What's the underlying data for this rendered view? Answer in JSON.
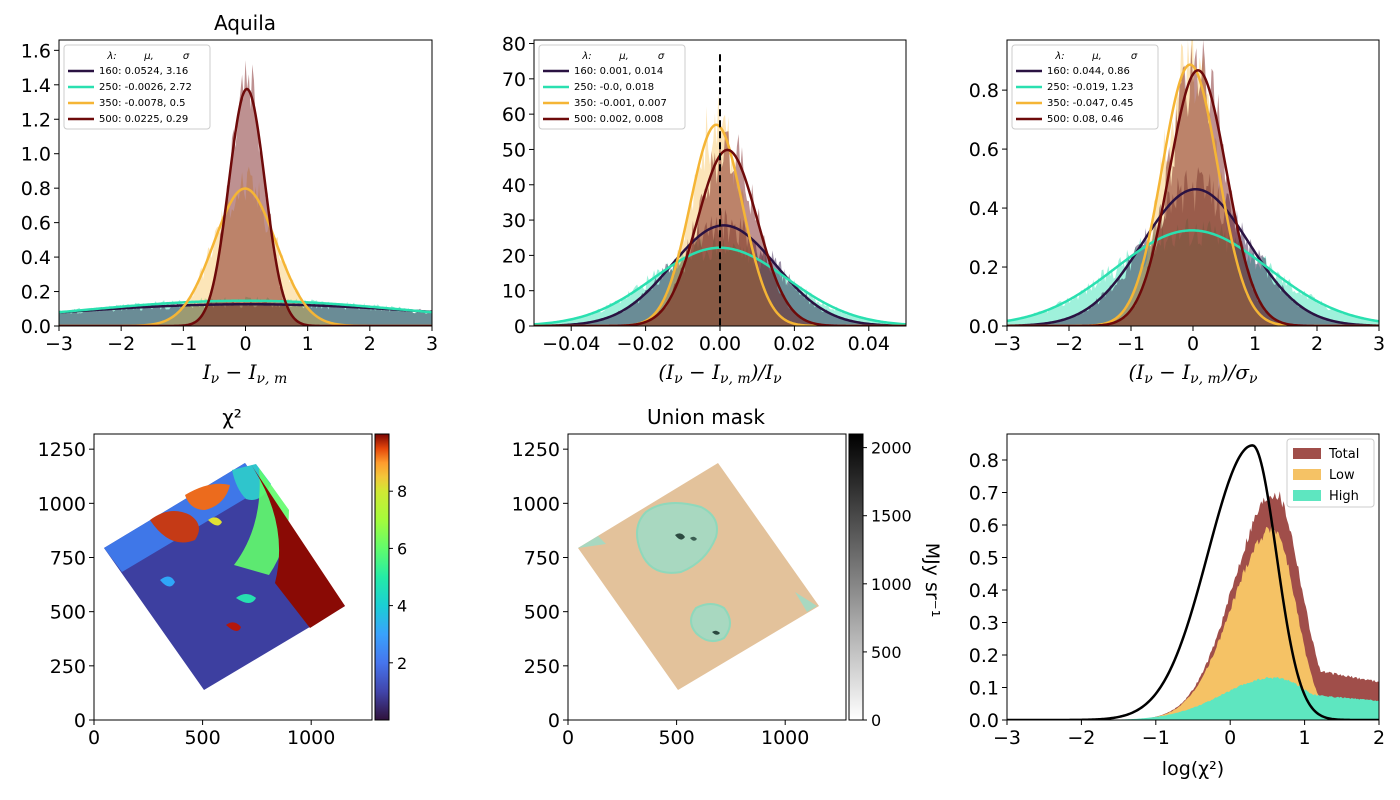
{
  "colors": {
    "c160": "#2a1242",
    "c250": "#2ae0b0",
    "c350": "#f5b535",
    "c500": "#6e0a0a",
    "total": "#a04e4a",
    "low": "#f5c265",
    "high": "#5ee6c0",
    "mask_fill": "#e3c29b",
    "mask_edge": "#8fd8bb"
  },
  "chart_data": [
    {
      "id": "panel1",
      "type": "histogram+line",
      "title": "Aquila",
      "xlabel": "I_ν − I_ν,m",
      "xlim": [
        -3,
        3
      ],
      "ylim": [
        0,
        1.66
      ],
      "xticks": [
        "−3",
        "−2",
        "−1",
        "0",
        "1",
        "2",
        "3"
      ],
      "yticks": [
        "0.0",
        "0.2",
        "0.4",
        "0.6",
        "0.8",
        "1.0",
        "1.2",
        "1.4",
        "1.6"
      ],
      "legend_header": [
        "λ:",
        "μ,",
        "σ"
      ],
      "series": [
        {
          "name": "160: 0.0524,  3.16",
          "mu": 0.0524,
          "sigma": 3.16
        },
        {
          "name": "250: -0.0026,  2.72",
          "mu": -0.0026,
          "sigma": 2.72
        },
        {
          "name": "350: -0.0078,  0.5",
          "mu": -0.0078,
          "sigma": 0.5
        },
        {
          "name": "500: 0.0225,  0.29",
          "mu": 0.0225,
          "sigma": 0.29
        }
      ]
    },
    {
      "id": "panel2",
      "type": "histogram+line",
      "title": "",
      "xlabel": "(I_ν − I_ν,m)/I_ν",
      "xlim": [
        -0.05,
        0.05
      ],
      "ylim": [
        0,
        81
      ],
      "xticks": [
        "−0.04",
        "−0.02",
        "0.00",
        "0.02",
        "0.04"
      ],
      "yticks": [
        "0",
        "10",
        "20",
        "30",
        "40",
        "50",
        "60",
        "70",
        "80"
      ],
      "vline_x": 0,
      "legend_header": [
        "λ:",
        "μ,",
        "σ"
      ],
      "series": [
        {
          "name": "160: 0.001,  0.014",
          "mu": 0.001,
          "sigma": 0.014
        },
        {
          "name": "250: -0.0,  0.018",
          "mu": 0.0,
          "sigma": 0.018
        },
        {
          "name": "350: -0.001,  0.007",
          "mu": -0.001,
          "sigma": 0.007
        },
        {
          "name": "500: 0.002,  0.008",
          "mu": 0.002,
          "sigma": 0.008
        }
      ]
    },
    {
      "id": "panel3",
      "type": "histogram+line",
      "title": "",
      "xlabel": "(I_ν − I_ν,m)/σ_ν",
      "xlim": [
        -3,
        3
      ],
      "ylim": [
        0,
        0.97
      ],
      "xticks": [
        "−3",
        "−2",
        "−1",
        "0",
        "1",
        "2",
        "3"
      ],
      "yticks": [
        "0.0",
        "0.2",
        "0.4",
        "0.6",
        "0.8"
      ],
      "legend_header": [
        "λ:",
        "μ,",
        "σ"
      ],
      "series": [
        {
          "name": "160: 0.044,  0.86",
          "mu": 0.044,
          "sigma": 0.86
        },
        {
          "name": "250: -0.019,  1.23",
          "mu": -0.019,
          "sigma": 1.23
        },
        {
          "name": "350: -0.047,  0.45",
          "mu": -0.047,
          "sigma": 0.45
        },
        {
          "name": "500: 0.08,  0.46",
          "mu": 0.08,
          "sigma": 0.46
        }
      ]
    },
    {
      "id": "panel4",
      "type": "heatmap",
      "title": "χ²",
      "xlim": [
        0,
        1280
      ],
      "ylim": [
        0,
        1320
      ],
      "xticks": [
        "0",
        "500",
        "1000"
      ],
      "yticks": [
        "0",
        "250",
        "500",
        "750",
        "1000",
        "1250"
      ],
      "colorbar_ticks": [
        "2",
        "4",
        "6",
        "8"
      ],
      "colorbar_range": [
        0,
        10
      ]
    },
    {
      "id": "panel5",
      "type": "heatmap",
      "title": "Union mask",
      "xlim": [
        0,
        1280
      ],
      "ylim": [
        0,
        1320
      ],
      "xticks": [
        "0",
        "500",
        "1000"
      ],
      "yticks": [
        "0",
        "250",
        "500",
        "750",
        "1000",
        "1250"
      ],
      "colorbar_ticks": [
        "0",
        "500",
        "1000",
        "1500",
        "2000"
      ],
      "colorbar_range": [
        0,
        2100
      ],
      "colorbar_label": "MJy sr⁻¹"
    },
    {
      "id": "panel6",
      "type": "histogram+line",
      "title": "",
      "xlabel": "log(χ²)",
      "xlim": [
        -3,
        2
      ],
      "ylim": [
        0,
        0.88
      ],
      "xticks": [
        "−3",
        "−2",
        "−1",
        "0",
        "1",
        "2"
      ],
      "yticks": [
        "0.0",
        "0.1",
        "0.2",
        "0.3",
        "0.4",
        "0.5",
        "0.6",
        "0.7",
        "0.8"
      ],
      "legend": [
        "Total",
        "Low",
        "High"
      ],
      "curve_peak": {
        "x": 0.3,
        "y": 0.845
      },
      "total_peak": {
        "x": 0.6,
        "y": 0.7
      },
      "low_peak": {
        "x": 0.58,
        "y": 0.59
      },
      "high_peak": {
        "x": 0.6,
        "y": 0.13
      }
    }
  ]
}
